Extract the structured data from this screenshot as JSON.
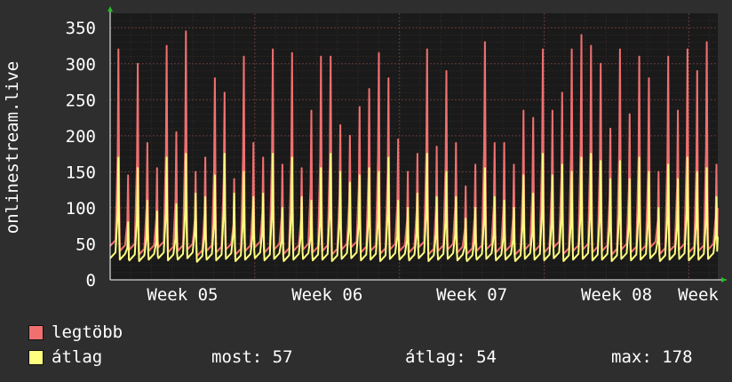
{
  "chart_data": {
    "type": "line",
    "ylabel": "onlinestream.live",
    "ylim": [
      0,
      370
    ],
    "y_ticks": [
      0,
      50,
      100,
      150,
      200,
      250,
      300,
      350
    ],
    "x_ticks": [
      "Week 05",
      "Week 06",
      "Week 07",
      "Week 08",
      "Week"
    ],
    "x_range_days": [
      0,
      29.4
    ],
    "x_tick_days": [
      0,
      7,
      14,
      21,
      28
    ],
    "grid": true,
    "colors": {
      "legtobb": "#f07070",
      "atlag": "#ffff80",
      "plot_bg": "#1a1a1a",
      "grid": "#6a3a3a"
    },
    "series": [
      {
        "name": "legtöbb",
        "daily_peaks": [
          320,
          145,
          300,
          190,
          155,
          325,
          205,
          345,
          150,
          170,
          280,
          260,
          140,
          310,
          190,
          170,
          320,
          160,
          315,
          155,
          235,
          310,
          310,
          215,
          200,
          240,
          265,
          315,
          280,
          195,
          150,
          175,
          320,
          185,
          290,
          190,
          130,
          160,
          330,
          190,
          190,
          160,
          235,
          225,
          320,
          235,
          260,
          320,
          340,
          325,
          300,
          210,
          320,
          230,
          310,
          280,
          150,
          310,
          235,
          320,
          290,
          330,
          160
        ],
        "troughs": [
          47,
          40,
          42,
          35,
          40,
          45,
          38,
          40,
          42,
          33,
          40,
          38,
          42,
          35,
          40,
          45,
          38,
          42,
          36,
          40,
          42,
          38,
          40,
          35,
          42,
          45,
          38,
          40,
          36,
          42,
          40,
          38,
          45,
          35,
          40,
          42,
          38,
          36,
          40,
          42,
          38,
          40,
          35,
          42,
          40,
          38,
          45,
          36,
          40,
          42,
          38,
          40,
          35,
          42,
          38,
          40,
          45,
          36,
          40,
          42,
          38,
          40,
          42
        ],
        "end_value": 100
      },
      {
        "name": "átlag",
        "daily_peaks": [
          170,
          80,
          155,
          110,
          95,
          170,
          105,
          175,
          120,
          115,
          145,
          175,
          120,
          150,
          115,
          120,
          175,
          100,
          170,
          115,
          110,
          155,
          175,
          150,
          135,
          145,
          155,
          150,
          170,
          110,
          100,
          120,
          175,
          115,
          150,
          115,
          85,
          100,
          155,
          115,
          110,
          100,
          145,
          120,
          175,
          145,
          160,
          150,
          170,
          175,
          165,
          140,
          165,
          140,
          170,
          150,
          100,
          160,
          140,
          170,
          150,
          155,
          115
        ],
        "troughs": [
          30,
          28,
          27,
          26,
          28,
          30,
          27,
          28,
          30,
          25,
          28,
          27,
          29,
          26,
          28,
          30,
          27,
          29,
          26,
          28,
          29,
          27,
          28,
          26,
          29,
          30,
          27,
          28,
          26,
          29,
          28,
          27,
          30,
          26,
          28,
          29,
          27,
          26,
          28,
          29,
          27,
          28,
          26,
          29,
          28,
          27,
          30,
          26,
          28,
          29,
          27,
          28,
          26,
          29,
          27,
          28,
          30,
          26,
          28,
          29,
          27,
          28,
          29
        ],
        "end_value": 60
      }
    ]
  },
  "legend": {
    "items": [
      {
        "label": "legtöbb",
        "color": "#f07070"
      },
      {
        "label": "átlag",
        "color": "#ffff80"
      }
    ],
    "stats": {
      "current": "most: 57",
      "average": "átlag: 54",
      "max": "max: 178"
    }
  }
}
